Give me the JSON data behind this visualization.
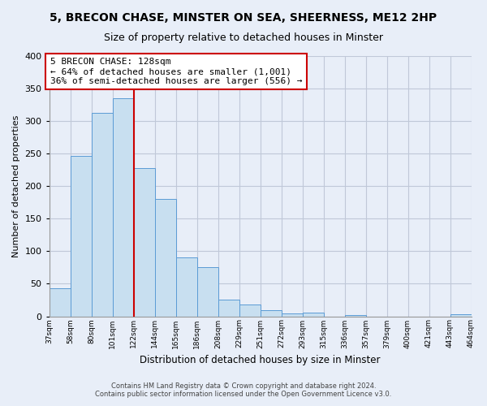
{
  "title": "5, BRECON CHASE, MINSTER ON SEA, SHEERNESS, ME12 2HP",
  "subtitle": "Size of property relative to detached houses in Minster",
  "xlabel": "Distribution of detached houses by size in Minster",
  "ylabel": "Number of detached properties",
  "bar_labels": [
    "37sqm",
    "58sqm",
    "80sqm",
    "101sqm",
    "122sqm",
    "144sqm",
    "165sqm",
    "186sqm",
    "208sqm",
    "229sqm",
    "251sqm",
    "272sqm",
    "293sqm",
    "315sqm",
    "336sqm",
    "357sqm",
    "379sqm",
    "400sqm",
    "421sqm",
    "443sqm",
    "464sqm"
  ],
  "bar_values": [
    43,
    246,
    313,
    335,
    228,
    180,
    91,
    76,
    25,
    18,
    10,
    5,
    6,
    0,
    2,
    0,
    0,
    0,
    0,
    3
  ],
  "bar_color": "#c8dff0",
  "bar_edge_color": "#5b9bd5",
  "vline_color": "#cc0000",
  "vline_index": 3.5,
  "annotation_title": "5 BRECON CHASE: 128sqm",
  "annotation_line1": "← 64% of detached houses are smaller (1,001)",
  "annotation_line2": "36% of semi-detached houses are larger (556) →",
  "annotation_box_color": "#ffffff",
  "annotation_box_edge": "#cc0000",
  "ylim": [
    0,
    400
  ],
  "yticks": [
    0,
    50,
    100,
    150,
    200,
    250,
    300,
    350,
    400
  ],
  "footer1": "Contains HM Land Registry data © Crown copyright and database right 2024.",
  "footer2": "Contains public sector information licensed under the Open Government Licence v3.0.",
  "bg_color": "#e8eef8",
  "grid_color": "#c0c8d8",
  "title_fontsize": 10,
  "subtitle_fontsize": 9
}
